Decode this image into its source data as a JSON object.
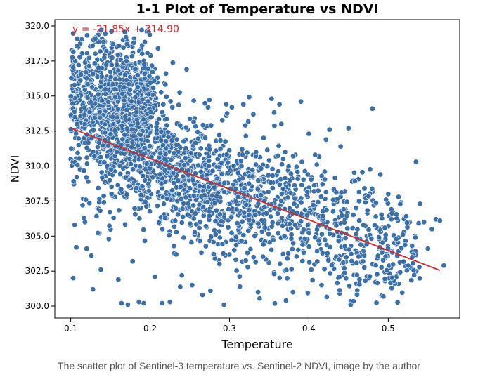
{
  "chart_data": {
    "type": "scatter",
    "title": "1-1 Plot of Temperature vs NDVI",
    "xlabel": "Temperature",
    "ylabel": "NDVI",
    "xlim": [
      0.08,
      0.59
    ],
    "ylim": [
      299.15,
      320.45
    ],
    "xticks": [
      0.1,
      0.2,
      0.3,
      0.4,
      0.5
    ],
    "xtick_labels": [
      "0.1",
      "0.2",
      "0.3",
      "0.4",
      "0.5"
    ],
    "yticks": [
      300.0,
      302.5,
      305.0,
      307.5,
      310.0,
      312.5,
      315.0,
      317.5,
      320.0
    ],
    "ytick_labels": [
      "300.0",
      "302.5",
      "305.0",
      "307.5",
      "310.0",
      "312.5",
      "315.0",
      "317.5",
      "320.0"
    ],
    "grid": false,
    "point_color": "#3a6fa8",
    "point_edge_color": "#ffffff",
    "point_count_estimate": 2500,
    "regression": {
      "label": "y = -21.85x + 314.90",
      "slope": -21.85,
      "intercept": 314.9,
      "x_range": [
        0.1,
        0.565
      ],
      "color": "#d62728"
    },
    "points": [
      [
        0.1,
        310.5
      ],
      [
        0.103,
        302.0
      ],
      [
        0.105,
        305.8
      ],
      [
        0.107,
        304.2
      ],
      [
        0.11,
        311.5
      ],
      [
        0.112,
        309.8
      ],
      [
        0.114,
        313.8
      ],
      [
        0.115,
        307.2
      ],
      [
        0.118,
        306.0
      ],
      [
        0.12,
        304.1
      ],
      [
        0.122,
        308.9
      ],
      [
        0.124,
        312.2
      ],
      [
        0.126,
        303.6
      ],
      [
        0.128,
        301.2
      ],
      [
        0.13,
        310.6
      ],
      [
        0.132,
        314.4
      ],
      [
        0.134,
        307.0
      ],
      [
        0.136,
        305.2
      ],
      [
        0.138,
        302.6
      ],
      [
        0.14,
        312.9
      ],
      [
        0.142,
        315.2
      ],
      [
        0.144,
        309.3
      ],
      [
        0.146,
        316.2
      ],
      [
        0.148,
        304.8
      ],
      [
        0.15,
        317.8
      ],
      [
        0.152,
        311.4
      ],
      [
        0.154,
        306.3
      ],
      [
        0.156,
        318.6
      ],
      [
        0.158,
        313.5
      ],
      [
        0.16,
        301.9
      ],
      [
        0.162,
        316.9
      ],
      [
        0.164,
        300.2
      ],
      [
        0.166,
        319.0
      ],
      [
        0.168,
        315.6
      ],
      [
        0.17,
        312.1
      ],
      [
        0.172,
        300.1
      ],
      [
        0.174,
        317.3
      ],
      [
        0.176,
        314.8
      ],
      [
        0.178,
        303.2
      ],
      [
        0.18,
        319.1
      ],
      [
        0.182,
        316.4
      ],
      [
        0.184,
        310.7
      ],
      [
        0.186,
        300.3
      ],
      [
        0.188,
        318.2
      ],
      [
        0.19,
        313.9
      ],
      [
        0.192,
        300.2
      ],
      [
        0.194,
        316.0
      ],
      [
        0.196,
        319.6
      ],
      [
        0.198,
        308.6
      ],
      [
        0.2,
        315.3
      ],
      [
        0.203,
        317.0
      ],
      [
        0.206,
        302.1
      ],
      [
        0.208,
        312.8
      ],
      [
        0.21,
        318.4
      ],
      [
        0.212,
        305.9
      ],
      [
        0.215,
        300.2
      ],
      [
        0.218,
        315.9
      ],
      [
        0.22,
        316.6
      ],
      [
        0.222,
        309.4
      ],
      [
        0.225,
        300.3
      ],
      [
        0.228,
        314.2
      ],
      [
        0.23,
        304.3
      ],
      [
        0.233,
        311.6
      ],
      [
        0.236,
        313.0
      ],
      [
        0.24,
        302.2
      ],
      [
        0.243,
        309.9
      ],
      [
        0.246,
        316.9
      ],
      [
        0.25,
        307.6
      ],
      [
        0.253,
        301.5
      ],
      [
        0.256,
        313.4
      ],
      [
        0.26,
        305.1
      ],
      [
        0.263,
        312.3
      ],
      [
        0.266,
        300.8
      ],
      [
        0.27,
        309.1
      ],
      [
        0.273,
        314.2
      ],
      [
        0.276,
        301.1
      ],
      [
        0.28,
        307.3
      ],
      [
        0.283,
        311.8
      ],
      [
        0.286,
        303.3
      ],
      [
        0.29,
        309.5
      ],
      [
        0.293,
        300.1
      ],
      [
        0.296,
        313.6
      ],
      [
        0.3,
        306.2
      ],
      [
        0.303,
        314.2
      ],
      [
        0.306,
        304.0
      ],
      [
        0.31,
        310.2
      ],
      [
        0.313,
        301.4
      ],
      [
        0.316,
        308.4
      ],
      [
        0.32,
        312.9
      ],
      [
        0.323,
        302.8
      ],
      [
        0.326,
        309.2
      ],
      [
        0.33,
        313.7
      ],
      [
        0.333,
        305.1
      ],
      [
        0.336,
        301.0
      ],
      [
        0.34,
        307.9
      ],
      [
        0.343,
        312.0
      ],
      [
        0.346,
        304.6
      ],
      [
        0.35,
        310.4
      ],
      [
        0.353,
        314.8
      ],
      [
        0.356,
        302.4
      ],
      [
        0.36,
        308.9
      ],
      [
        0.363,
        314.4
      ],
      [
        0.366,
        306.3
      ],
      [
        0.37,
        311.0
      ],
      [
        0.373,
        303.4
      ],
      [
        0.376,
        309.5
      ],
      [
        0.38,
        301.0
      ],
      [
        0.383,
        310.8
      ],
      [
        0.386,
        305.6
      ],
      [
        0.39,
        314.6
      ],
      [
        0.393,
        303.9
      ],
      [
        0.396,
        308.3
      ],
      [
        0.4,
        312.3
      ],
      [
        0.403,
        302.6
      ],
      [
        0.406,
        307.4
      ],
      [
        0.41,
        310.1
      ],
      [
        0.413,
        304.8
      ],
      [
        0.416,
        301.5
      ],
      [
        0.42,
        309.6
      ],
      [
        0.423,
        306.0
      ],
      [
        0.426,
        312.6
      ],
      [
        0.43,
        303.0
      ],
      [
        0.433,
        308.2
      ],
      [
        0.436,
        305.3
      ],
      [
        0.44,
        311.4
      ],
      [
        0.443,
        302.2
      ],
      [
        0.446,
        306.9
      ],
      [
        0.45,
        312.7
      ],
      [
        0.453,
        304.3
      ],
      [
        0.456,
        309.0
      ],
      [
        0.46,
        301.6
      ],
      [
        0.463,
        306.1
      ],
      [
        0.466,
        303.7
      ],
      [
        0.47,
        308.4
      ],
      [
        0.473,
        305.0
      ],
      [
        0.476,
        302.0
      ],
      [
        0.48,
        314.1
      ],
      [
        0.483,
        307.4
      ],
      [
        0.486,
        303.4
      ],
      [
        0.49,
        309.4
      ],
      [
        0.493,
        305.6
      ],
      [
        0.496,
        301.8
      ],
      [
        0.5,
        308.0
      ],
      [
        0.503,
        303.9
      ],
      [
        0.506,
        306.7
      ],
      [
        0.51,
        304.4
      ],
      [
        0.513,
        301.6
      ],
      [
        0.516,
        307.4
      ],
      [
        0.52,
        305.3
      ],
      [
        0.523,
        302.8
      ],
      [
        0.527,
        306.0
      ],
      [
        0.53,
        304.3
      ],
      [
        0.535,
        310.3
      ],
      [
        0.54,
        307.3
      ],
      [
        0.545,
        306.0
      ],
      [
        0.55,
        304.1
      ],
      [
        0.555,
        305.5
      ],
      [
        0.56,
        306.2
      ],
      [
        0.565,
        306.1
      ],
      [
        0.57,
        302.9
      ]
    ]
  },
  "caption": "The scatter plot of Sentinel-3 temperature vs. Sentinel-2 NDVI, image by the author"
}
